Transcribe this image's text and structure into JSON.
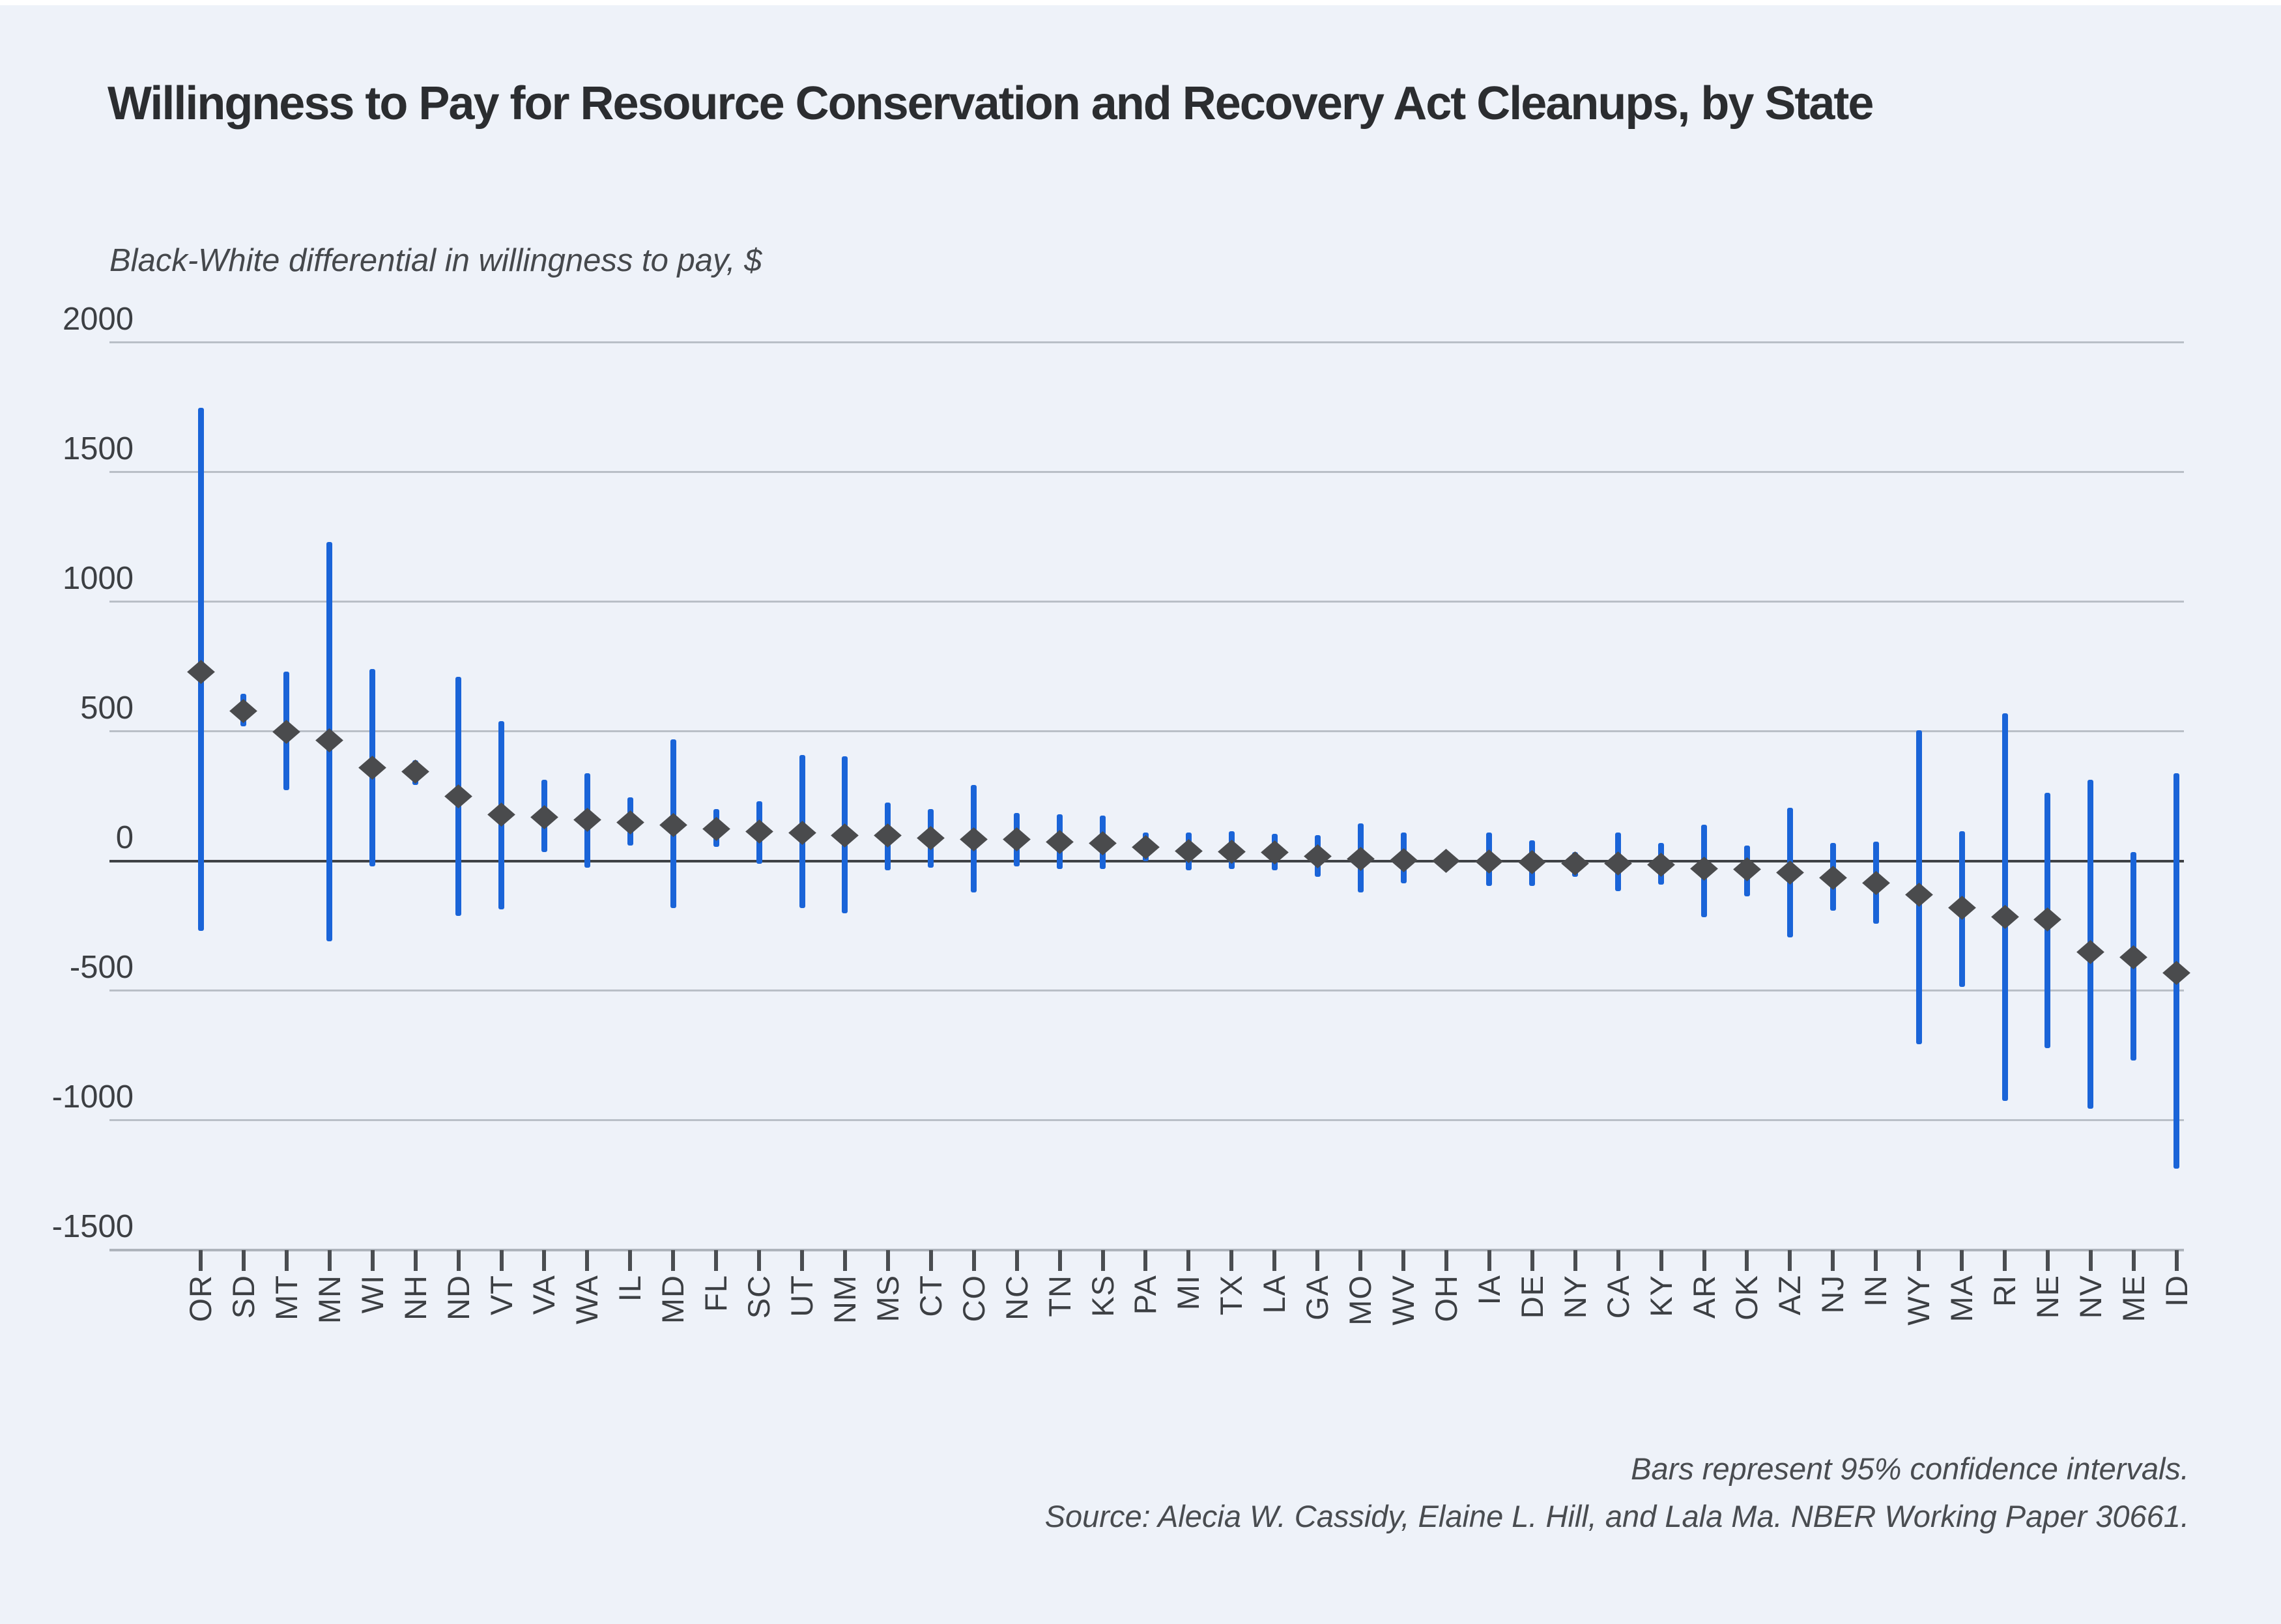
{
  "title": "Willingness to Pay for Resource Conservation and Recovery Act Cleanups, by State",
  "footnote_line1": "Bars represent 95% confidence intervals.",
  "footnote_line2": "Source: Alecia W. Cassidy, Elaine L. Hill, and Lala Ma. NBER Working Paper 30661.",
  "colors": {
    "background": "#eef2f9",
    "ci_bar_blue": "#1a64d8",
    "marker_gray": "#4a4b4d",
    "gridline": "#b9bfc7",
    "zero_line": "#3f4246",
    "axis_line": "#aeb4bc",
    "title_text": "#2b2d30",
    "label_text": "#3c3f43"
  },
  "chart_data": {
    "type": "scatter",
    "title": "Willingness to Pay for Resource Conservation and Recovery Act Cleanups, by State",
    "xlabel": "",
    "ylabel": "Black-White differential in willingness to pay, $",
    "ylim": [
      -1500,
      2000
    ],
    "yticks": [
      2000,
      1500,
      1000,
      500,
      0,
      -500,
      -1000,
      -1500
    ],
    "grid": true,
    "legend_position": "none",
    "marker": "diamond",
    "error_bars": "95% confidence intervals",
    "categories": [
      "OR",
      "SD",
      "MT",
      "MN",
      "WI",
      "NH",
      "ND",
      "VT",
      "VA",
      "WA",
      "IL",
      "MD",
      "FL",
      "SC",
      "UT",
      "NM",
      "MS",
      "CT",
      "CO",
      "NC",
      "TN",
      "KS",
      "PA",
      "MI",
      "TX",
      "LA",
      "GA",
      "MO",
      "WV",
      "OH",
      "IA",
      "DE",
      "NY",
      "CA",
      "KY",
      "AR",
      "OK",
      "AZ",
      "NJ",
      "IN",
      "WY",
      "MA",
      "RI",
      "NE",
      "NV",
      "ME",
      "ID"
    ],
    "points": [
      {
        "state": "OR",
        "value": 730,
        "ci_low": -270,
        "ci_high": 1750
      },
      {
        "state": "SD",
        "value": 580,
        "ci_low": 520,
        "ci_high": 645
      },
      {
        "state": "MT",
        "value": 500,
        "ci_low": 275,
        "ci_high": 730
      },
      {
        "state": "MN",
        "value": 465,
        "ci_low": -310,
        "ci_high": 1230
      },
      {
        "state": "WI",
        "value": 360,
        "ci_low": -20,
        "ci_high": 740
      },
      {
        "state": "NH",
        "value": 345,
        "ci_low": 295,
        "ci_high": 390
      },
      {
        "state": "ND",
        "value": 250,
        "ci_low": -210,
        "ci_high": 710
      },
      {
        "state": "VT",
        "value": 180,
        "ci_low": -185,
        "ci_high": 540
      },
      {
        "state": "VA",
        "value": 170,
        "ci_low": 35,
        "ci_high": 315
      },
      {
        "state": "WA",
        "value": 160,
        "ci_low": -25,
        "ci_high": 340
      },
      {
        "state": "IL",
        "value": 150,
        "ci_low": 60,
        "ci_high": 245
      },
      {
        "state": "MD",
        "value": 140,
        "ci_low": -180,
        "ci_high": 470
      },
      {
        "state": "FL",
        "value": 125,
        "ci_low": 55,
        "ci_high": 200
      },
      {
        "state": "SC",
        "value": 115,
        "ci_low": -10,
        "ci_high": 230
      },
      {
        "state": "UT",
        "value": 110,
        "ci_low": -180,
        "ci_high": 410
      },
      {
        "state": "NM",
        "value": 100,
        "ci_low": -200,
        "ci_high": 405
      },
      {
        "state": "MS",
        "value": 98,
        "ci_low": -35,
        "ci_high": 225
      },
      {
        "state": "CT",
        "value": 90,
        "ci_low": -25,
        "ci_high": 200
      },
      {
        "state": "CO",
        "value": 85,
        "ci_low": -120,
        "ci_high": 295
      },
      {
        "state": "NC",
        "value": 84,
        "ci_low": -20,
        "ci_high": 185
      },
      {
        "state": "TN",
        "value": 75,
        "ci_low": -30,
        "ci_high": 180
      },
      {
        "state": "KS",
        "value": 70,
        "ci_low": -30,
        "ci_high": 175
      },
      {
        "state": "PA",
        "value": 55,
        "ci_low": 0,
        "ci_high": 110
      },
      {
        "state": "MI",
        "value": 40,
        "ci_low": -35,
        "ci_high": 110
      },
      {
        "state": "TX",
        "value": 36,
        "ci_low": -30,
        "ci_high": 115
      },
      {
        "state": "LA",
        "value": 33,
        "ci_low": -35,
        "ci_high": 105
      },
      {
        "state": "GA",
        "value": 20,
        "ci_low": -60,
        "ci_high": 100
      },
      {
        "state": "MO",
        "value": 10,
        "ci_low": -120,
        "ci_high": 145
      },
      {
        "state": "WV",
        "value": 5,
        "ci_low": -85,
        "ci_high": 110
      },
      {
        "state": "OH",
        "value": 2,
        "ci_low": -35,
        "ci_high": 40
      },
      {
        "state": "IA",
        "value": 0,
        "ci_low": -95,
        "ci_high": 110
      },
      {
        "state": "DE",
        "value": -5,
        "ci_low": -95,
        "ci_high": 80
      },
      {
        "state": "NY",
        "value": -8,
        "ci_low": -60,
        "ci_high": 35
      },
      {
        "state": "CA",
        "value": -10,
        "ci_low": -115,
        "ci_high": 110
      },
      {
        "state": "KY",
        "value": -15,
        "ci_low": -90,
        "ci_high": 70
      },
      {
        "state": "AR",
        "value": -30,
        "ci_low": -215,
        "ci_high": 140
      },
      {
        "state": "OK",
        "value": -32,
        "ci_low": -135,
        "ci_high": 60
      },
      {
        "state": "AZ",
        "value": -45,
        "ci_low": -295,
        "ci_high": 205
      },
      {
        "state": "NJ",
        "value": -65,
        "ci_low": -190,
        "ci_high": 70
      },
      {
        "state": "IN",
        "value": -85,
        "ci_low": -240,
        "ci_high": 75
      },
      {
        "state": "WY",
        "value": -130,
        "ci_low": -705,
        "ci_high": 505
      },
      {
        "state": "MA",
        "value": -180,
        "ci_low": -485,
        "ci_high": 115
      },
      {
        "state": "RI",
        "value": -215,
        "ci_low": -925,
        "ci_high": 570
      },
      {
        "state": "NE",
        "value": -225,
        "ci_low": -720,
        "ci_high": 265
      },
      {
        "state": "NV",
        "value": -350,
        "ci_low": -955,
        "ci_high": 315
      },
      {
        "state": "ME",
        "value": -370,
        "ci_low": -770,
        "ci_high": 35
      },
      {
        "state": "ID",
        "value": -430,
        "ci_low": -1185,
        "ci_high": 340
      }
    ]
  }
}
